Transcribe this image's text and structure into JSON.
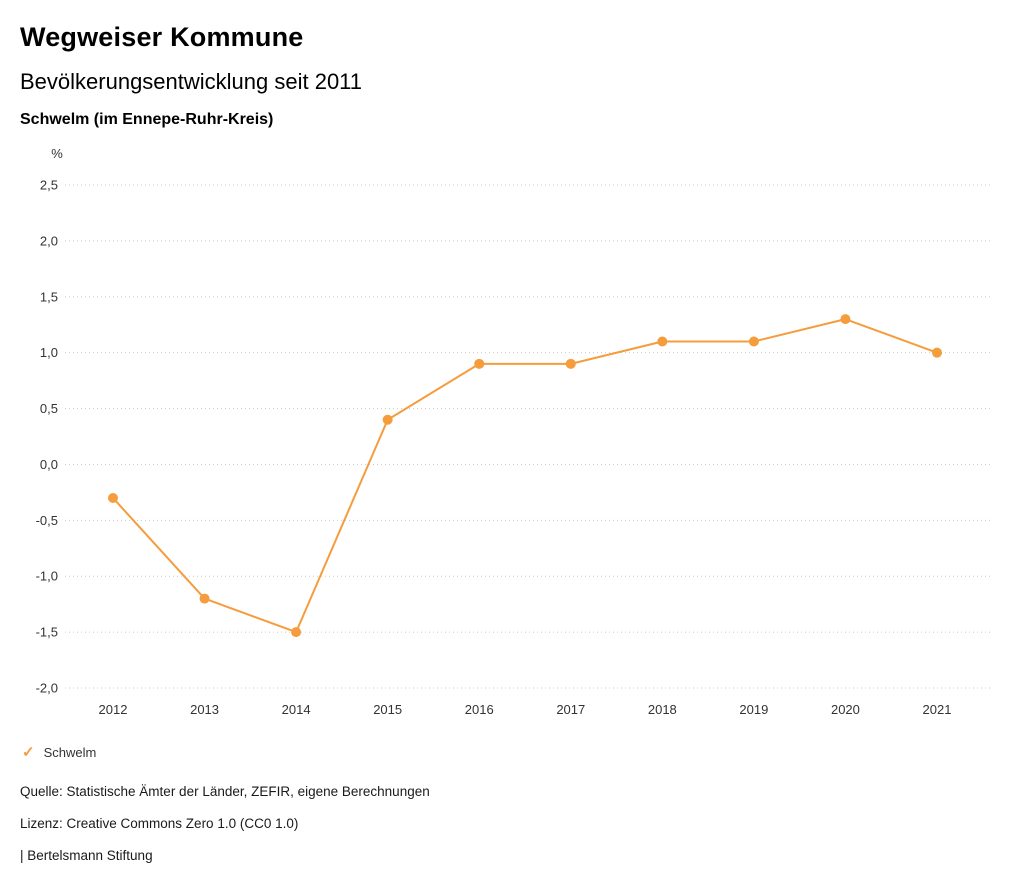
{
  "header": {
    "title": "Wegweiser Kommune",
    "subtitle": "Bevölkerungsentwicklung seit 2011",
    "location": "Schwelm (im Ennepe-Ruhr-Kreis)"
  },
  "chart_data": {
    "type": "line",
    "title": "Bevölkerungsentwicklung seit 2011",
    "unit_label": "%",
    "categories": [
      "2012",
      "2013",
      "2014",
      "2015",
      "2016",
      "2017",
      "2018",
      "2019",
      "2020",
      "2021"
    ],
    "series": [
      {
        "name": "Schwelm",
        "values": [
          -0.3,
          -1.2,
          -1.5,
          0.4,
          0.9,
          0.9,
          1.1,
          1.1,
          1.3,
          1.0
        ]
      }
    ],
    "ylim": [
      -2.0,
      2.5
    ],
    "ytick_step": 0.5,
    "ytick_labels": [
      "2,5",
      "2,0",
      "1,5",
      "1,0",
      "0,5",
      "0,0",
      "-0,5",
      "-1,0",
      "-1,5",
      "-2,0"
    ],
    "xlabel": "",
    "ylabel": "%",
    "grid": "horizontal-dotted",
    "legend_position": "bottom-left",
    "line_color": "#F59C3C",
    "grid_color": "#CCCCCC",
    "text_color": "#333333"
  },
  "legend": {
    "items": [
      {
        "label": "Schwelm",
        "color": "#F59C3C",
        "marker": "check"
      }
    ]
  },
  "footer": {
    "source": "Quelle: Statistische Ämter der Länder, ZEFIR, eigene Berechnungen",
    "license": "Lizenz: Creative Commons Zero 1.0 (CC0 1.0)",
    "attribution": "| Bertelsmann Stiftung"
  }
}
